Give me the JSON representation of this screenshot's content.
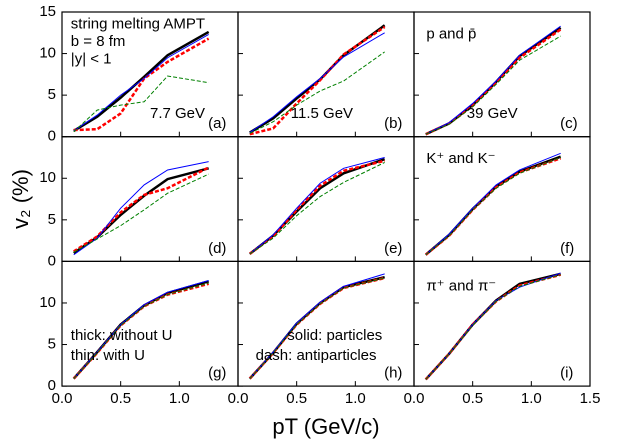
{
  "figure": {
    "xlabel": "pT (GeV/c)",
    "ylabel": "v₂ (%)"
  },
  "chart_data": [
    {
      "type": "line",
      "x": [
        0.1,
        0.3,
        0.5,
        0.7,
        0.9,
        1.25
      ],
      "xlim": [
        0,
        1.5
      ],
      "ylim": [
        0,
        15
      ],
      "xticks": [
        0,
        0.5,
        1
      ],
      "yticks": [
        0,
        5,
        10,
        15
      ],
      "annotations": [
        "string melting AMPT",
        "b = 8 fm",
        "|y| < 1",
        "7.7 GeV",
        "(a)"
      ],
      "series": [
        {
          "color": "#000000",
          "width": 2.5,
          "dash": false,
          "values": [
            0.7,
            2.4,
            4.7,
            7.2,
            9.8,
            12.6
          ]
        },
        {
          "color": "#ff0000",
          "width": 2.5,
          "dash": true,
          "values": [
            0.8,
            0.9,
            2.8,
            7.0,
            9.0,
            11.8
          ]
        },
        {
          "color": "#0000ff",
          "width": 1,
          "dash": false,
          "values": [
            0.7,
            2.6,
            5.0,
            7.0,
            9.5,
            12.3
          ]
        },
        {
          "color": "#008000",
          "width": 1,
          "dash": true,
          "values": [
            0.6,
            3.2,
            3.8,
            4.2,
            7.3,
            6.5
          ]
        }
      ]
    },
    {
      "type": "line",
      "x": [
        0.1,
        0.3,
        0.5,
        0.7,
        0.9,
        1.25
      ],
      "xlim": [
        0,
        1.5
      ],
      "ylim": [
        0,
        15
      ],
      "xticks": [
        0,
        0.5,
        1
      ],
      "yticks": [
        0,
        5,
        10,
        15
      ],
      "annotations": [
        "11.5 GeV",
        "(b)"
      ],
      "series": [
        {
          "color": "#000000",
          "width": 2.5,
          "dash": false,
          "values": [
            0.5,
            2.2,
            4.6,
            6.9,
            9.8,
            13.4
          ]
        },
        {
          "color": "#ff0000",
          "width": 2.5,
          "dash": true,
          "values": [
            0.3,
            1.0,
            4.0,
            6.8,
            9.9,
            13.2
          ]
        },
        {
          "color": "#0000ff",
          "width": 1,
          "dash": false,
          "values": [
            0.5,
            2.4,
            4.8,
            7.0,
            9.6,
            12.5
          ]
        },
        {
          "color": "#008000",
          "width": 1,
          "dash": true,
          "values": [
            0.4,
            1.8,
            3.8,
            5.5,
            6.7,
            10.2
          ]
        }
      ]
    },
    {
      "type": "line",
      "x": [
        0.1,
        0.3,
        0.5,
        0.7,
        0.9,
        1.25
      ],
      "xlim": [
        0,
        1.5
      ],
      "ylim": [
        0,
        15
      ],
      "xticks": [
        0,
        0.5,
        1,
        1.5
      ],
      "yticks": [
        0,
        5,
        10,
        15
      ],
      "annotations": [
        "p and p̄",
        "39 GeV",
        "(c)"
      ],
      "series": [
        {
          "color": "#000000",
          "width": 2.5,
          "dash": false,
          "values": [
            0.3,
            1.6,
            3.8,
            6.6,
            9.7,
            13.1
          ]
        },
        {
          "color": "#ff0000",
          "width": 2.5,
          "dash": true,
          "values": [
            0.3,
            1.6,
            3.7,
            6.5,
            9.5,
            12.9
          ]
        },
        {
          "color": "#0000ff",
          "width": 1,
          "dash": false,
          "values": [
            0.3,
            1.7,
            4.0,
            6.7,
            9.8,
            13.3
          ]
        },
        {
          "color": "#008000",
          "width": 1,
          "dash": true,
          "values": [
            0.3,
            1.5,
            3.6,
            6.3,
            9.2,
            12.1
          ]
        }
      ]
    },
    {
      "type": "line",
      "x": [
        0.1,
        0.3,
        0.5,
        0.7,
        0.9,
        1.25
      ],
      "xlim": [
        0,
        1.5
      ],
      "ylim": [
        0,
        15
      ],
      "xticks": [
        0,
        0.5,
        1
      ],
      "yticks": [
        0,
        5,
        10
      ],
      "annotations": [
        "(d)"
      ],
      "series": [
        {
          "color": "#000000",
          "width": 2.5,
          "dash": false,
          "values": [
            1.0,
            2.9,
            5.6,
            7.9,
            9.9,
            11.2
          ]
        },
        {
          "color": "#ff0000",
          "width": 2.5,
          "dash": true,
          "values": [
            1.2,
            3.0,
            5.9,
            8.0,
            8.8,
            11.3
          ]
        },
        {
          "color": "#0000ff",
          "width": 1,
          "dash": false,
          "values": [
            0.8,
            2.8,
            6.4,
            9.2,
            11.0,
            12.0
          ]
        },
        {
          "color": "#008000",
          "width": 1,
          "dash": true,
          "values": [
            1.1,
            2.7,
            4.3,
            6.2,
            8.2,
            10.5
          ]
        }
      ]
    },
    {
      "type": "line",
      "x": [
        0.1,
        0.3,
        0.5,
        0.7,
        0.9,
        1.25
      ],
      "xlim": [
        0,
        1.5
      ],
      "ylim": [
        0,
        15
      ],
      "xticks": [
        0,
        0.5,
        1
      ],
      "yticks": [
        0,
        5,
        10
      ],
      "annotations": [
        "(e)"
      ],
      "series": [
        {
          "color": "#000000",
          "width": 2.5,
          "dash": false,
          "values": [
            0.9,
            3.1,
            6.0,
            8.8,
            10.6,
            12.3
          ]
        },
        {
          "color": "#ff0000",
          "width": 2.5,
          "dash": true,
          "values": [
            0.9,
            3.0,
            6.2,
            9.1,
            10.9,
            12.1
          ]
        },
        {
          "color": "#0000ff",
          "width": 1,
          "dash": false,
          "values": [
            0.9,
            3.2,
            6.4,
            9.4,
            11.2,
            12.5
          ]
        },
        {
          "color": "#008000",
          "width": 1,
          "dash": true,
          "values": [
            0.9,
            2.8,
            5.5,
            7.8,
            9.5,
            11.9
          ]
        }
      ]
    },
    {
      "type": "line",
      "x": [
        0.1,
        0.3,
        0.5,
        0.7,
        0.9,
        1.25
      ],
      "xlim": [
        0,
        1.5
      ],
      "ylim": [
        0,
        15
      ],
      "xticks": [
        0,
        0.5,
        1,
        1.5
      ],
      "yticks": [
        0,
        5,
        10
      ],
      "annotations": [
        "K⁺ and K⁻",
        "(f)"
      ],
      "series": [
        {
          "color": "#000000",
          "width": 2.5,
          "dash": false,
          "values": [
            0.8,
            3.2,
            6.3,
            9.0,
            10.8,
            12.6
          ]
        },
        {
          "color": "#ff0000",
          "width": 2.5,
          "dash": true,
          "values": [
            0.8,
            3.1,
            6.2,
            8.9,
            10.7,
            12.4
          ]
        },
        {
          "color": "#0000ff",
          "width": 1,
          "dash": false,
          "values": [
            0.8,
            3.3,
            6.4,
            9.2,
            11.0,
            13.0
          ]
        },
        {
          "color": "#008000",
          "width": 1,
          "dash": true,
          "values": [
            0.8,
            3.1,
            6.2,
            8.8,
            10.6,
            12.5
          ]
        }
      ]
    },
    {
      "type": "line",
      "x": [
        0.1,
        0.3,
        0.5,
        0.7,
        0.9,
        1.25
      ],
      "xlim": [
        0,
        1.5
      ],
      "ylim": [
        0,
        15
      ],
      "xticks": [
        {
          "value": 0,
          "label": "0.0"
        },
        {
          "value": 0.5,
          "label": "0.5"
        },
        {
          "value": 1,
          "label": "1.0"
        }
      ],
      "yticks": [
        0,
        5,
        10
      ],
      "annotations": [
        "thick: without U",
        "thin: with U",
        "(g)"
      ],
      "series": [
        {
          "color": "#000000",
          "width": 2.5,
          "dash": false,
          "values": [
            0.9,
            4.1,
            7.4,
            9.7,
            11.2,
            12.6
          ]
        },
        {
          "color": "#ff0000",
          "width": 2.5,
          "dash": true,
          "values": [
            0.9,
            4.0,
            7.3,
            9.6,
            11.0,
            12.3
          ]
        },
        {
          "color": "#0000ff",
          "width": 1,
          "dash": false,
          "values": [
            0.9,
            4.1,
            7.4,
            9.8,
            11.3,
            12.7
          ]
        },
        {
          "color": "#008000",
          "width": 1,
          "dash": true,
          "values": [
            0.9,
            4.0,
            7.3,
            9.6,
            11.0,
            12.4
          ]
        }
      ]
    },
    {
      "type": "line",
      "x": [
        0.1,
        0.3,
        0.5,
        0.7,
        0.9,
        1.25
      ],
      "xlim": [
        0,
        1.5
      ],
      "ylim": [
        0,
        15
      ],
      "xticks": [
        {
          "value": 0,
          "label": "0.0"
        },
        {
          "value": 0.5,
          "label": "0.5"
        },
        {
          "value": 1,
          "label": "1.0"
        }
      ],
      "yticks": [
        0,
        5,
        10
      ],
      "annotations": [
        "solid: particles",
        "dash: antiparticles",
        "(h)"
      ],
      "series": [
        {
          "color": "#000000",
          "width": 2.5,
          "dash": false,
          "values": [
            0.9,
            4.0,
            7.5,
            10.0,
            11.9,
            13.1
          ]
        },
        {
          "color": "#ff0000",
          "width": 2.5,
          "dash": true,
          "values": [
            0.9,
            4.0,
            7.4,
            9.9,
            11.8,
            13.0
          ]
        },
        {
          "color": "#0000ff",
          "width": 1,
          "dash": false,
          "values": [
            0.9,
            4.1,
            7.6,
            10.1,
            12.0,
            13.5
          ]
        },
        {
          "color": "#008000",
          "width": 1,
          "dash": true,
          "values": [
            0.9,
            4.0,
            7.4,
            9.9,
            11.8,
            13.0
          ]
        }
      ]
    },
    {
      "type": "line",
      "x": [
        0.1,
        0.3,
        0.5,
        0.7,
        0.9,
        1.25
      ],
      "xlim": [
        0,
        1.5
      ],
      "ylim": [
        0,
        15
      ],
      "xticks": [
        {
          "value": 0,
          "label": "0.0"
        },
        {
          "value": 0.5,
          "label": "0.5"
        },
        {
          "value": 1,
          "label": "1.0"
        },
        {
          "value": 1.5,
          "label": "1.5"
        }
      ],
      "yticks": [
        0,
        5,
        10
      ],
      "annotations": [
        "π⁺ and π⁻",
        "(i)"
      ],
      "series": [
        {
          "color": "#000000",
          "width": 2.5,
          "dash": false,
          "values": [
            0.8,
            3.9,
            7.4,
            10.3,
            12.3,
            13.5
          ]
        },
        {
          "color": "#ff0000",
          "width": 2.5,
          "dash": true,
          "values": [
            0.8,
            3.9,
            7.4,
            10.2,
            12.1,
            13.4
          ]
        },
        {
          "color": "#0000ff",
          "width": 1,
          "dash": false,
          "values": [
            0.8,
            3.9,
            7.4,
            10.3,
            11.9,
            13.6
          ]
        },
        {
          "color": "#008000",
          "width": 1,
          "dash": true,
          "values": [
            0.8,
            3.9,
            7.3,
            10.2,
            12.0,
            13.4
          ]
        }
      ]
    }
  ]
}
